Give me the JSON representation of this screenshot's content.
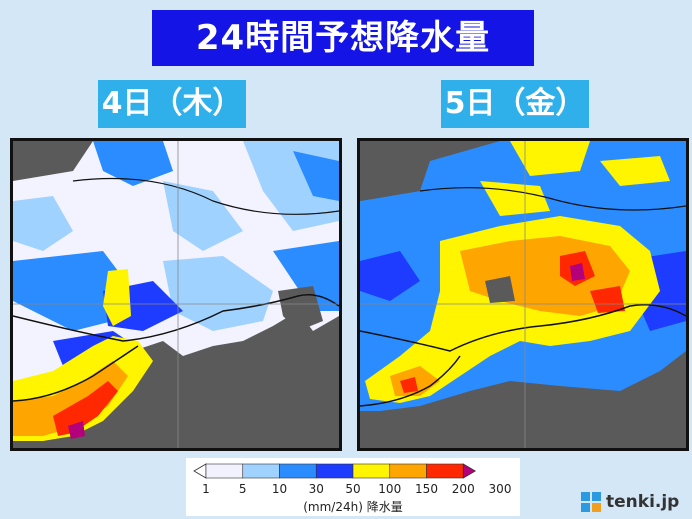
{
  "title": "24時間予想降水量",
  "panels": [
    {
      "label": "4日（木）"
    },
    {
      "label": "5日（金）"
    }
  ],
  "legend": {
    "values": [
      "1",
      "5",
      "10",
      "30",
      "50",
      "100",
      "150",
      "200",
      "300"
    ],
    "colors": [
      "#ffffff",
      "#f2f2ff",
      "#a0d2ff",
      "#2b8cff",
      "#1e3cff",
      "#fff500",
      "#ffa500",
      "#ff2800",
      "#b4007a"
    ],
    "unit": "(mm/24h) 降水量"
  },
  "brand": {
    "name": "tenki.jp",
    "icon": "tenki-logo-icon"
  },
  "colors": {
    "title_bg": "#1414e6",
    "label_bg": "#2fb0ea",
    "page_bg": "#d3e7f7",
    "sea": "#5a5a5a"
  }
}
